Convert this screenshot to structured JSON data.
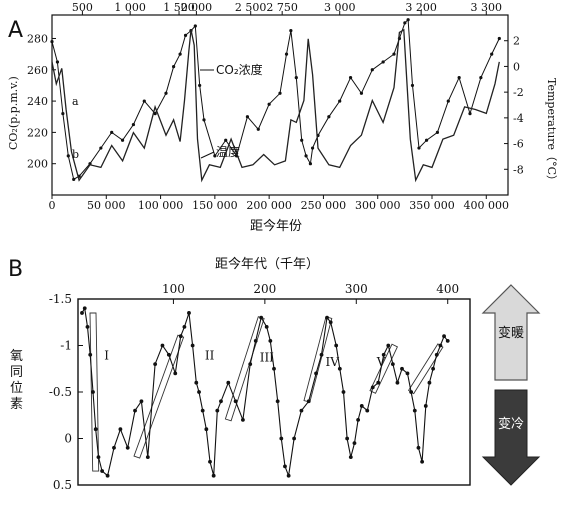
{
  "chart_data": [
    {
      "panel": "A",
      "type": "line",
      "top_axis": {
        "ticks": [
          "500",
          "1 000",
          "1 500",
          "2 000",
          "2 500",
          "2 750",
          "3 000",
          "3 200",
          "3 300"
        ],
        "positions_x": [
          28000,
          72000,
          117000,
          133000,
          183000,
          212000,
          265000,
          340000,
          400000
        ]
      },
      "x": {
        "label": "距今年份",
        "ticks": [
          "0",
          "50 000",
          "100 000",
          "150 000",
          "200 000",
          "250 000",
          "300 000",
          "350 000",
          "400 000"
        ],
        "tick_values": [
          0,
          50000,
          100000,
          150000,
          200000,
          250000,
          300000,
          350000,
          400000
        ],
        "lim": [
          0,
          420000
        ]
      },
      "y_left": {
        "label": "CO₂(p.p.m.v.)",
        "ticks": [
          "200",
          "220",
          "240",
          "260",
          "280"
        ],
        "tick_values": [
          200,
          220,
          240,
          260,
          280
        ],
        "lim": [
          180,
          295
        ]
      },
      "y_right": {
        "label": "Temperature（°C）",
        "ticks": [
          "2",
          "0",
          "-2",
          "-4",
          "-6",
          "-8"
        ],
        "tick_values": [
          2,
          0,
          -2,
          -4,
          -6,
          -8
        ],
        "lim": [
          -10,
          4
        ]
      },
      "series": [
        {
          "name": "CO₂浓度",
          "letter": "a",
          "axis": "left",
          "x": [
            0,
            5000,
            10000,
            15000,
            20000,
            25000,
            35000,
            45000,
            55000,
            65000,
            75000,
            85000,
            95000,
            105000,
            112000,
            118000,
            123000,
            128000,
            132000,
            136000,
            140000,
            150000,
            160000,
            170000,
            180000,
            190000,
            200000,
            210000,
            216000,
            220000,
            225000,
            230000,
            234000,
            238000,
            240000,
            245000,
            255000,
            265000,
            275000,
            285000,
            295000,
            305000,
            315000,
            320000,
            325000,
            328000,
            332000,
            338000,
            345000,
            355000,
            365000,
            375000,
            385000,
            395000,
            405000,
            412000
          ],
          "values": [
            278,
            265,
            232,
            205,
            190,
            192,
            200,
            210,
            220,
            215,
            225,
            240,
            232,
            245,
            262,
            270,
            282,
            285,
            288,
            250,
            228,
            205,
            215,
            205,
            230,
            222,
            238,
            245,
            270,
            285,
            255,
            215,
            205,
            200,
            210,
            218,
            230,
            240,
            255,
            245,
            260,
            265,
            270,
            280,
            290,
            292,
            250,
            210,
            215,
            220,
            240,
            255,
            232,
            255,
            270,
            280
          ]
        },
        {
          "name": "温度",
          "letter": "b",
          "axis": "right",
          "x": [
            0,
            4000,
            9000,
            13000,
            18000,
            25000,
            35000,
            45000,
            55000,
            65000,
            75000,
            85000,
            95000,
            105000,
            112000,
            118000,
            122000,
            126000,
            128000,
            131000,
            134000,
            138000,
            145000,
            155000,
            165000,
            175000,
            185000,
            195000,
            205000,
            215000,
            220000,
            225000,
            232000,
            236000,
            240000,
            245000,
            255000,
            265000,
            275000,
            285000,
            295000,
            305000,
            315000,
            320000,
            324000,
            327000,
            330000,
            335000,
            342000,
            350000,
            360000,
            370000,
            380000,
            390000,
            400000,
            408000,
            412000
          ],
          "values": [
            0,
            -1,
            -0.5,
            -3,
            -7,
            -8.5,
            -8,
            -7.5,
            -6.5,
            -7,
            -5.5,
            -6,
            -3.5,
            -5,
            -4.5,
            -5.5,
            -3,
            1.5,
            2.5,
            2,
            -6,
            -8.5,
            -8,
            -7.5,
            -6,
            -7.5,
            -8,
            -6.5,
            -8,
            -7,
            -4.5,
            -4,
            -3,
            2.5,
            -1,
            -6,
            -8,
            -7.5,
            -6.5,
            -5,
            -3,
            -4,
            -2,
            3,
            2.5,
            -1,
            -6,
            -8.5,
            -8,
            -7.5,
            -6,
            -5,
            -3.5,
            -3,
            -4,
            -1,
            0
          ]
        }
      ]
    },
    {
      "panel": "B",
      "type": "line",
      "title": "距今年代（千年）",
      "x": {
        "ticks": [
          "100",
          "200",
          "300",
          "400"
        ],
        "tick_values": [
          100,
          200,
          300,
          400
        ],
        "lim": [
          0,
          420
        ]
      },
      "y": {
        "label": "氧同位素",
        "ticks": [
          "-1.5",
          "-1",
          "-0.5",
          "0",
          "0.5"
        ],
        "tick_values": [
          -1.5,
          -1,
          -0.5,
          0,
          0.5
        ],
        "lim": [
          -1.5,
          0.5
        ],
        "inverted": true
      },
      "stage_labels": [
        "I",
        "II",
        "III",
        "IV",
        "V"
      ],
      "series": [
        {
          "name": "",
          "x": [
            0,
            3,
            6,
            9,
            12,
            15,
            18,
            22,
            28,
            35,
            42,
            50,
            58,
            65,
            72,
            80,
            88,
            95,
            102,
            108,
            112,
            117,
            121,
            125,
            128,
            132,
            136,
            140,
            144,
            148,
            152,
            160,
            168,
            176,
            184,
            190,
            196,
            202,
            206,
            210,
            214,
            218,
            222,
            226,
            232,
            240,
            248,
            256,
            262,
            268,
            272,
            278,
            282,
            286,
            290,
            294,
            298,
            302,
            306,
            312,
            318,
            324,
            330,
            335,
            340,
            345,
            350,
            356,
            360,
            364,
            368,
            372,
            376,
            380,
            384,
            388,
            392,
            396,
            400
          ],
          "values": [
            -1.35,
            -1.4,
            -1.2,
            -0.9,
            -0.5,
            -0.1,
            0.2,
            0.35,
            0.4,
            0.1,
            -0.1,
            0.1,
            -0.3,
            -0.4,
            0.2,
            -0.8,
            -1.0,
            -0.9,
            -0.7,
            -1.1,
            -1.2,
            -1.35,
            -1.0,
            -0.6,
            -0.5,
            -0.3,
            -0.1,
            0.25,
            0.4,
            -0.3,
            -0.4,
            -0.6,
            -0.4,
            -0.2,
            -0.8,
            -1.05,
            -1.3,
            -1.2,
            -1.05,
            -0.75,
            -0.4,
            0.0,
            0.3,
            0.4,
            0.0,
            -0.3,
            -0.4,
            -0.7,
            -0.9,
            -1.3,
            -1.25,
            -1.0,
            -0.75,
            -0.5,
            0.0,
            0.2,
            0.05,
            -0.2,
            -0.35,
            -0.3,
            -0.55,
            -0.6,
            -0.9,
            -1.0,
            -0.8,
            -0.6,
            -0.75,
            -0.7,
            -0.5,
            -0.3,
            0.1,
            0.25,
            -0.35,
            -0.6,
            -0.75,
            -0.9,
            -1.0,
            -1.1,
            -1.05
          ]
        }
      ]
    }
  ],
  "labels": {
    "panel_a": "A",
    "panel_b": "B",
    "co2_annotation": "CO₂浓度",
    "temp_annotation": "温度",
    "series_a": "a",
    "series_b": "b"
  },
  "legend_arrows": [
    {
      "label": "变暖",
      "color": "#d9d9d9"
    },
    {
      "label": "变冷",
      "color": "#3b3b3b"
    }
  ]
}
